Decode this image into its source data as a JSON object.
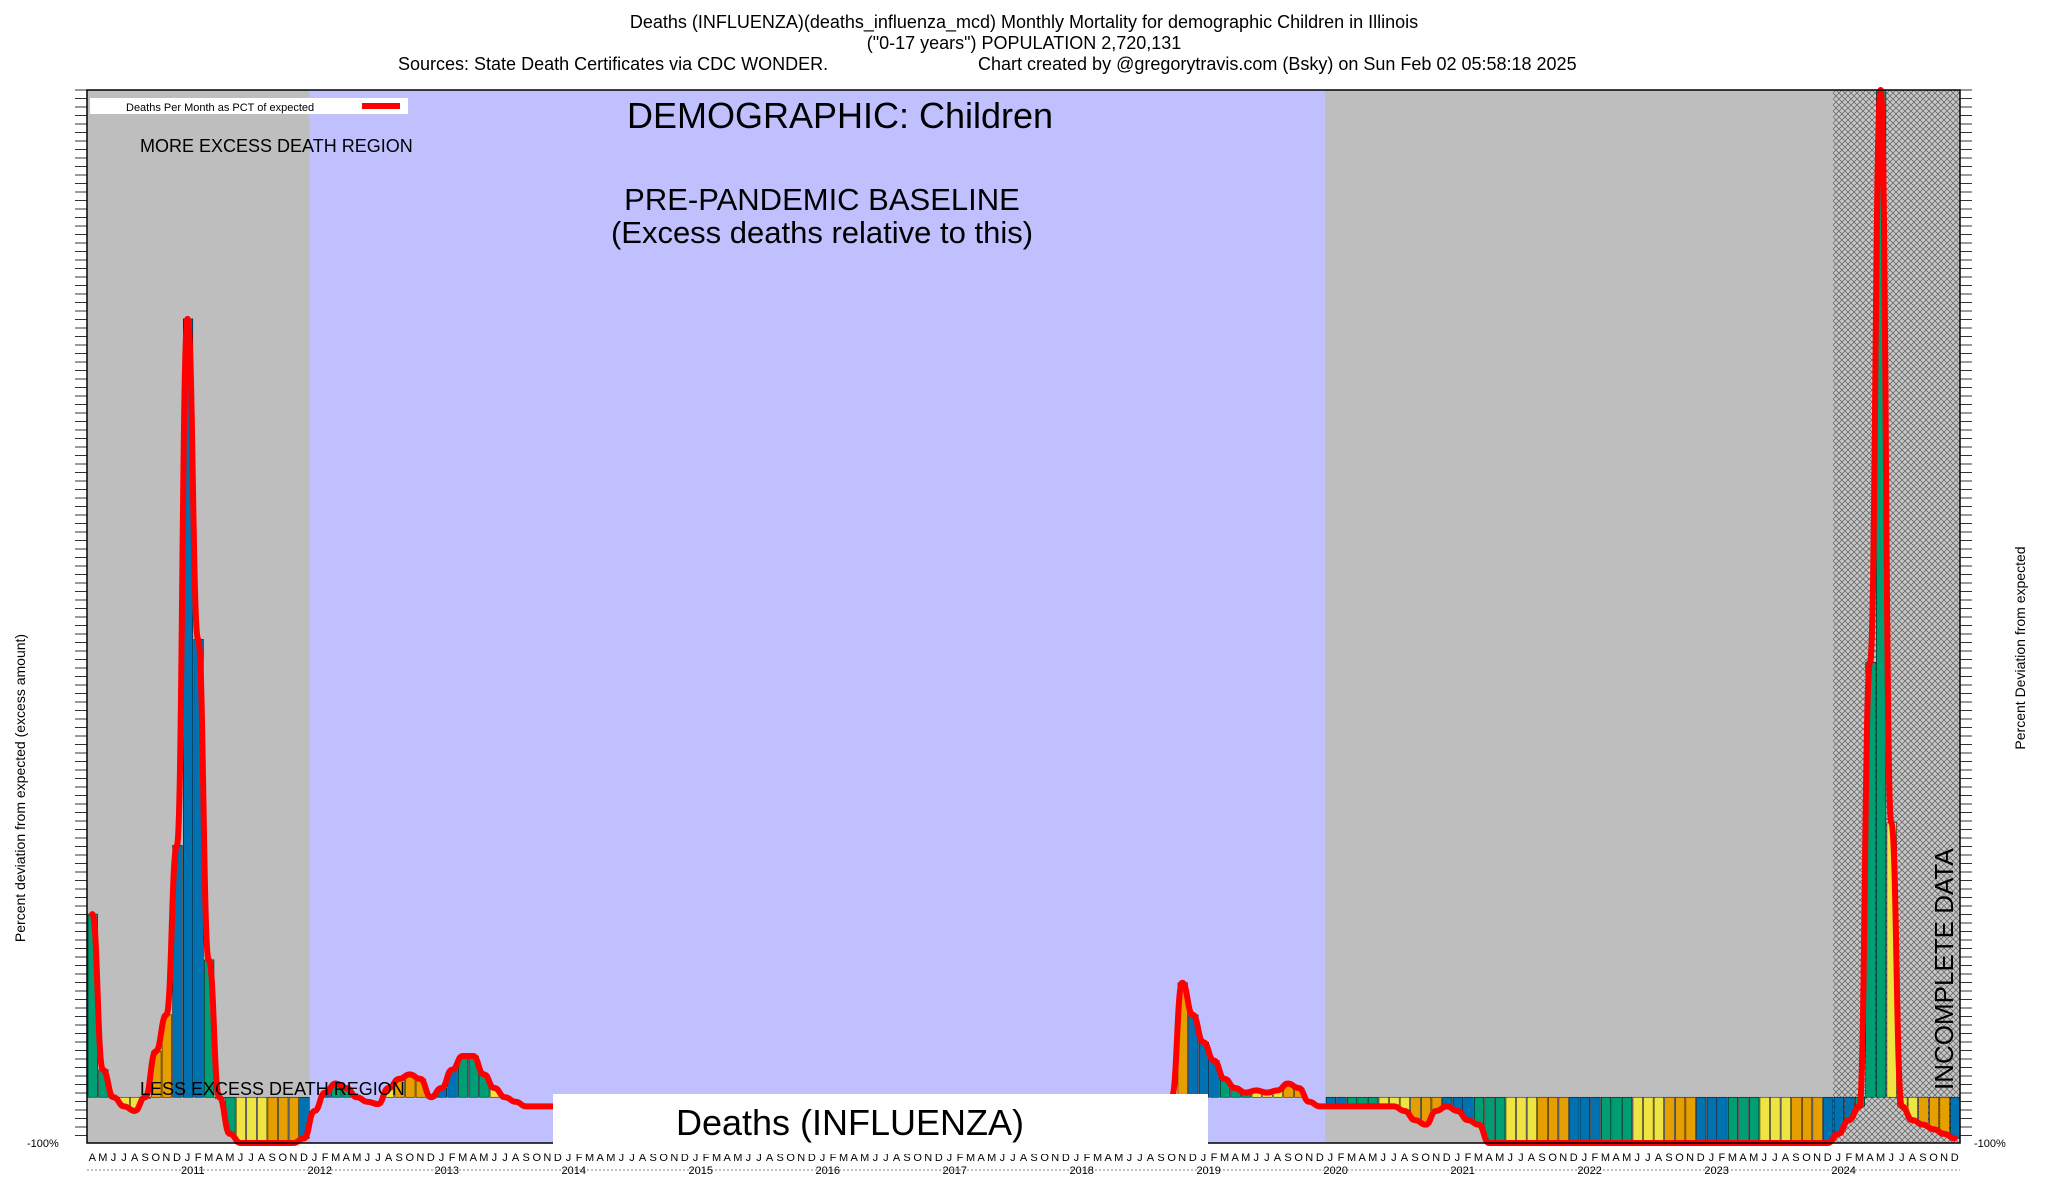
{
  "header": {
    "title_line1": "Deaths (INFLUENZA)(deaths_influenza_mcd) Monthly Mortality for demographic Children in Illinois",
    "title_line2": "(\"0-17 years\") POPULATION 2,720,131",
    "sources": "Sources: State Death Certificates via CDC WONDER.",
    "credit": "Chart created by @gregorytravis.com (Bsky) on Sun Feb 02 05:58:18 2025"
  },
  "annotations": {
    "demographic": "DEMOGRAPHIC: Children",
    "baseline_line1": "PRE-PANDEMIC BASELINE",
    "baseline_line2": "(Excess deaths relative to this)",
    "more_excess": "MORE EXCESS DEATH REGION",
    "less_excess": "LESS EXCESS DEATH REGION",
    "incomplete": "INCOMPLETE DATA",
    "cause_box": "Deaths (INFLUENZA)"
  },
  "legend": {
    "label": "Deaths Per Month as PCT of expected",
    "color": "#ff0000"
  },
  "colors": {
    "background_gray": "#bebebe",
    "baseline_region": "#c0c0ff",
    "bar_green": "#009e73",
    "bar_orange": "#e69f00",
    "bar_blue": "#0072b2",
    "bar_yellow": "#f0e442",
    "line": "#ff0000",
    "incomplete_hatch": "#a0a0a0"
  },
  "chart_data": {
    "type": "bar",
    "title": "Deaths (INFLUENZA)(deaths_influenza_mcd) Monthly Mortality for demographic Children in Illinois",
    "ylabel_left": "Percent deviation from expected (excess amount)",
    "ylabel_right": "Percent Deviation from expected",
    "y_axis_tick_label": "-100%",
    "ylim": [
      -100,
      2200
    ],
    "grid": false,
    "legend_position": "top-left",
    "start": "2010-04",
    "month_letters": [
      "J",
      "F",
      "M",
      "A",
      "M",
      "J",
      "J",
      "A",
      "S",
      "O",
      "N",
      "D"
    ],
    "year_labels": [
      "2011",
      "2012",
      "2013",
      "2014",
      "2015",
      "2016",
      "2017",
      "2018",
      "2019",
      "2020",
      "2021",
      "2022",
      "2023",
      "2024"
    ],
    "baseline_period": [
      "2012-01",
      "2019-12"
    ],
    "incomplete_period": [
      "2024-01",
      "2024-12"
    ],
    "series": [
      {
        "name": "Deaths Per Month as PCT of expected",
        "values": [
          400,
          60,
          0,
          -20,
          -30,
          0,
          100,
          180,
          550,
          1700,
          1000,
          300,
          0,
          -80,
          -100,
          -100,
          -100,
          -100,
          -100,
          -100,
          -90,
          -30,
          10,
          30,
          20,
          0,
          -10,
          -15,
          20,
          40,
          50,
          40,
          0,
          20,
          60,
          90,
          90,
          50,
          20,
          0,
          -10,
          -20,
          -20,
          -20,
          -20,
          -20,
          -20,
          -20,
          -20,
          -20,
          -20,
          -20,
          -20,
          -20,
          -20,
          -15,
          -10,
          -10,
          -5,
          -20,
          -30,
          -40,
          -40,
          -40,
          -40,
          -40,
          -40,
          -40,
          -40,
          -40,
          -40,
          -40,
          -40,
          -40,
          -40,
          -40,
          -40,
          -40,
          -40,
          -40,
          -40,
          -40,
          -40,
          -40,
          -40,
          -40,
          -40,
          -40,
          -40,
          -40,
          -40,
          -40,
          -40,
          -40,
          -40,
          -40,
          -40,
          -40,
          -40,
          -20,
          0,
          0,
          0,
          250,
          180,
          120,
          80,
          40,
          20,
          10,
          15,
          10,
          15,
          30,
          20,
          -10,
          -20,
          -20,
          -20,
          -20,
          -20,
          -20,
          -20,
          -20,
          -30,
          -50,
          -60,
          -30,
          -20,
          -30,
          -50,
          -60,
          -100,
          -100,
          -100,
          -100,
          -100,
          -100,
          -100,
          -100,
          -100,
          -100,
          -100,
          -100,
          -100,
          -100,
          -100,
          -100,
          -100,
          -100,
          -100,
          -100,
          -100,
          -100,
          -100,
          -100,
          -100,
          -100,
          -100,
          -100,
          -100,
          -100,
          -100,
          -100,
          -100,
          -80,
          -50,
          -20,
          950,
          2200,
          600,
          -20,
          -50,
          -60,
          -70,
          -80,
          -90,
          -95,
          -100,
          -100,
          -100,
          -100,
          -100,
          -70,
          -20,
          -20,
          -20,
          -20,
          -30,
          -30,
          -30,
          -30,
          -30,
          -30,
          -30,
          -30,
          -30,
          -30,
          -20,
          -30,
          -30,
          -50,
          -60,
          -60
        ]
      }
    ]
  }
}
